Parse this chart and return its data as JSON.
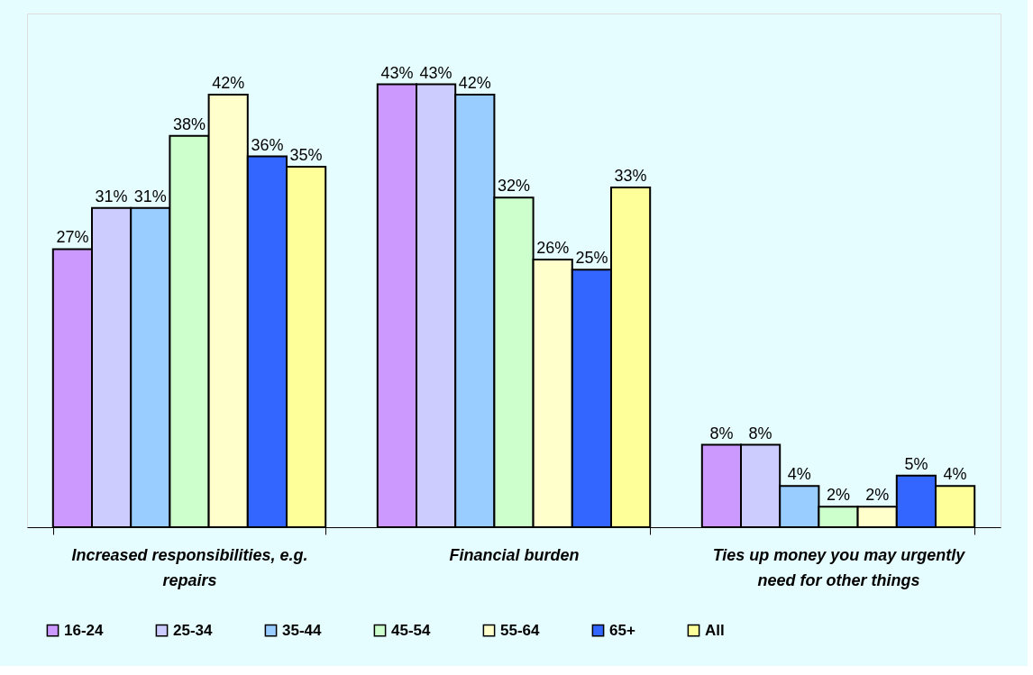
{
  "chart_data": {
    "type": "bar",
    "categories": [
      "Increased responsibilities, e.g. repairs",
      "Financial burden",
      "Ties up money you may urgently need for other things"
    ],
    "series": [
      {
        "name": "16-24",
        "color": "#cc99ff",
        "values": [
          27,
          43,
          8
        ],
        "value_labels": [
          "27%",
          "43%",
          "8%"
        ]
      },
      {
        "name": "25-34",
        "color": "#ccccff",
        "values": [
          31,
          43,
          8
        ],
        "value_labels": [
          "31%",
          "43%",
          "8%"
        ]
      },
      {
        "name": "35-44",
        "color": "#99ccff",
        "values": [
          31,
          42,
          4
        ],
        "value_labels": [
          "31%",
          "42%",
          "4%"
        ]
      },
      {
        "name": "45-54",
        "color": "#ccffcc",
        "values": [
          38,
          32,
          2
        ],
        "value_labels": [
          "38%",
          "32%",
          "2%"
        ]
      },
      {
        "name": "55-64",
        "color": "#ffffcc",
        "values": [
          42,
          26,
          2
        ],
        "value_labels": [
          "42%",
          "26%",
          "2%"
        ]
      },
      {
        "name": "65+",
        "color": "#3366ff",
        "values": [
          36,
          25,
          5
        ],
        "value_labels": [
          "36%",
          "25%",
          "5%"
        ]
      },
      {
        "name": "All",
        "color": "#ffff99",
        "values": [
          35,
          33,
          4
        ],
        "value_labels": [
          "35%",
          "33%",
          "4%"
        ]
      }
    ],
    "legend": "bottom",
    "grid": false
  }
}
